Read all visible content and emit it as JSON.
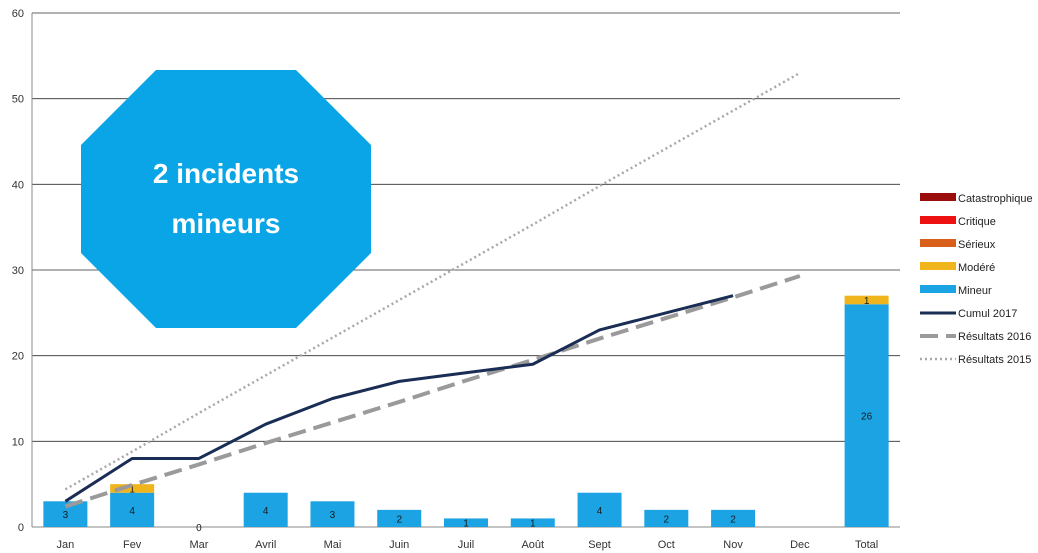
{
  "chart_data": {
    "type": "bar",
    "categories": [
      "Jan",
      "Fev",
      "Mar",
      "Avril",
      "Mai",
      "Juin",
      "Juil",
      "Août",
      "Sept",
      "Oct",
      "Nov",
      "Dec",
      "Total"
    ],
    "ylim": [
      0,
      60
    ],
    "yticks": [
      0,
      10,
      20,
      30,
      40,
      50,
      60
    ],
    "grid": true,
    "legend_position": "right",
    "stacked_series": [
      {
        "name": "Catastrophique",
        "color": "#9b0d0d",
        "values": [
          0,
          0,
          0,
          0,
          0,
          0,
          0,
          0,
          0,
          0,
          0,
          0,
          0
        ]
      },
      {
        "name": "Critique",
        "color": "#ee1111",
        "values": [
          0,
          0,
          0,
          0,
          0,
          0,
          0,
          0,
          0,
          0,
          0,
          0,
          0
        ]
      },
      {
        "name": "Sérieux",
        "color": "#d9601a",
        "values": [
          0,
          0,
          0,
          0,
          0,
          0,
          0,
          0,
          0,
          0,
          0,
          0,
          0
        ]
      },
      {
        "name": "Modéré",
        "color": "#f0b41c",
        "values": [
          0,
          1,
          0,
          0,
          0,
          0,
          0,
          0,
          0,
          0,
          0,
          0,
          1
        ]
      },
      {
        "name": "Mineur",
        "color": "#1ba3e3",
        "values": [
          3,
          4,
          0,
          4,
          3,
          2,
          1,
          1,
          4,
          2,
          2,
          0,
          26
        ]
      }
    ],
    "bar_labels": [
      {
        "category": "Jan",
        "series": "Mineur",
        "text": "3"
      },
      {
        "category": "Fev",
        "series": "Mineur",
        "text": "4"
      },
      {
        "category": "Fev",
        "series": "Modéré",
        "text": "1"
      },
      {
        "category": "Mar",
        "series": "Mineur",
        "text": "0"
      },
      {
        "category": "Avril",
        "series": "Mineur",
        "text": "4"
      },
      {
        "category": "Mai",
        "series": "Mineur",
        "text": "3"
      },
      {
        "category": "Juin",
        "series": "Mineur",
        "text": "2"
      },
      {
        "category": "Juil",
        "series": "Mineur",
        "text": "1"
      },
      {
        "category": "Août",
        "series": "Mineur",
        "text": "1"
      },
      {
        "category": "Sept",
        "series": "Mineur",
        "text": "4"
      },
      {
        "category": "Oct",
        "series": "Mineur",
        "text": "2"
      },
      {
        "category": "Nov",
        "series": "Mineur",
        "text": "2"
      },
      {
        "category": "Total",
        "series": "Mineur",
        "text": "26"
      },
      {
        "category": "Total",
        "series": "Modéré",
        "text": "1"
      }
    ],
    "line_series": [
      {
        "name": "Cumul 2017",
        "color": "#1a2d55",
        "style": "solid",
        "values": [
          3,
          8,
          8,
          12,
          15,
          17,
          18,
          19,
          23,
          25,
          27,
          null,
          null
        ]
      },
      {
        "name": "Résultats 2016",
        "color": "#9a9a9a",
        "style": "dashed",
        "values": [
          2.4,
          4.9,
          7.3,
          9.8,
          12.2,
          14.6,
          17.1,
          19.5,
          22.0,
          24.4,
          26.8,
          29.3,
          null
        ]
      },
      {
        "name": "Résultats 2015",
        "color": "#a8a8a8",
        "style": "dotted",
        "values": [
          4.4,
          8.8,
          13.3,
          17.7,
          22.1,
          26.5,
          30.9,
          35.3,
          39.8,
          44.2,
          48.6,
          53.0,
          null
        ]
      }
    ]
  },
  "badge": {
    "line1": "2 incidents",
    "line2": "mineurs",
    "color": "#0aa5e6"
  }
}
